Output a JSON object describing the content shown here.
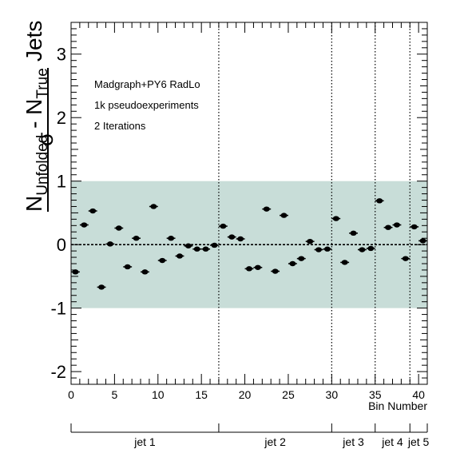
{
  "chart_data": {
    "type": "scatter",
    "title": "",
    "xlabel": "Bin Number",
    "ylabel": {
      "main": "N",
      "sub1": "Unfolded",
      "minus": " - N",
      "sub2": "True",
      "denominator": "σ",
      "suffix": "Jets"
    },
    "xlim": [
      0,
      41
    ],
    "ylim": [
      -2.2,
      3.5
    ],
    "xticks": [
      0,
      5,
      10,
      15,
      20,
      25,
      30,
      35,
      40
    ],
    "yticks": [
      -2,
      -1,
      0,
      1,
      2,
      3
    ],
    "grid": false,
    "annotations": [
      "Madgraph+PY6 RadLo",
      "1k pseudoexperiments",
      "2 Iterations"
    ],
    "band": {
      "lower": -1,
      "upper": 1,
      "color": "#c8ddd8"
    },
    "reference_line": 0,
    "separators": [
      17,
      30,
      35,
      39
    ],
    "jet_groups": [
      {
        "label": "jet 1",
        "start": 0,
        "end": 17
      },
      {
        "label": "jet 2",
        "start": 17,
        "end": 30
      },
      {
        "label": "jet 3",
        "start": 30,
        "end": 35
      },
      {
        "label": "jet 4",
        "start": 35,
        "end": 39
      },
      {
        "label": "jet 5",
        "start": 39,
        "end": 41
      }
    ],
    "series": [
      {
        "x": [
          0.5,
          1.5,
          2.5,
          3.5,
          4.5,
          5.5,
          6.5,
          7.5,
          8.5,
          9.5,
          10.5,
          11.5,
          12.5,
          13.5,
          14.5,
          15.5,
          16.5,
          17.5,
          18.5,
          19.5,
          20.5,
          21.5,
          22.5,
          23.5,
          24.5,
          25.5,
          26.5,
          27.5,
          28.5,
          29.5,
          30.5,
          31.5,
          32.5,
          33.5,
          34.5,
          35.5,
          36.5,
          37.5,
          38.5,
          39.5,
          40.5
        ],
        "y": [
          -0.43,
          0.31,
          0.53,
          -0.67,
          0.01,
          0.26,
          -0.35,
          0.1,
          -0.43,
          0.6,
          -0.25,
          0.1,
          -0.18,
          -0.02,
          -0.07,
          -0.07,
          -0.01,
          0.29,
          0.12,
          0.09,
          -0.38,
          -0.36,
          0.56,
          -0.42,
          0.46,
          -0.3,
          -0.22,
          0.05,
          -0.08,
          -0.07,
          0.41,
          -0.28,
          0.18,
          -0.08,
          -0.06,
          0.69,
          0.27,
          0.31,
          -0.22,
          0.28,
          0.06
        ],
        "xerr": 0.5,
        "yerr": 0.03,
        "color": "#000000"
      }
    ]
  }
}
